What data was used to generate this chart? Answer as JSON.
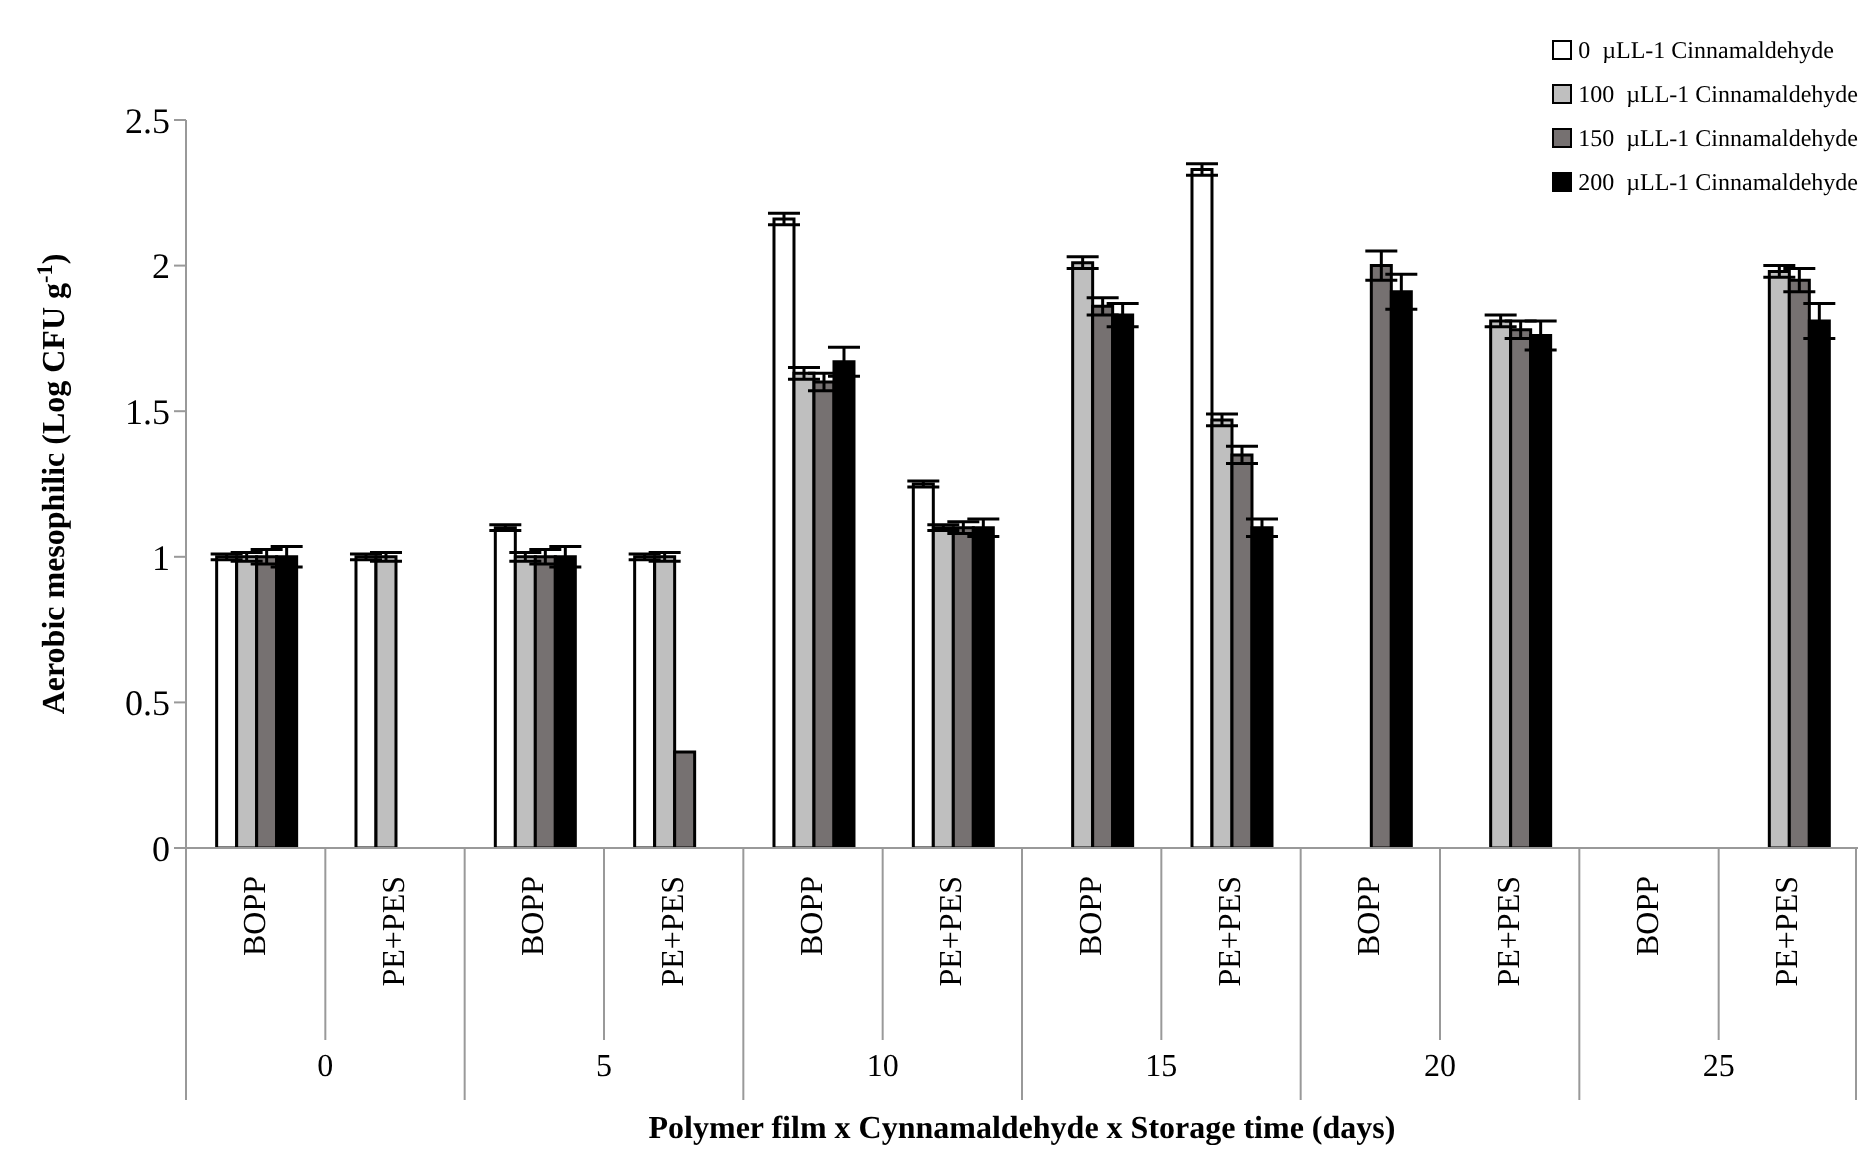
{
  "chart_data": {
    "type": "bar",
    "xlabel": "Polymer film x Cynnamaldehyde x Storage time (days)",
    "ylabel": "Aerobic mesophilic (Log CFU g$^{-1}$)",
    "categories": [
      "BOPP",
      "PE+PES",
      "BOPP",
      "PE+PES",
      "BOPP",
      "PE+PES",
      "BOPP",
      "PE+PES",
      "BOPP",
      "PE+PES",
      "BOPP",
      "PE+PES"
    ],
    "annotations": [
      "0",
      "5",
      "10",
      "15",
      "20",
      "25"
    ],
    "ylim": [
      0,
      2.5
    ],
    "yticks": [
      0,
      {
        "value": 0.5,
        "label": "0.5"
      },
      1,
      {
        "value": 1.5,
        "label": "1.5"
      },
      2,
      {
        "value": 2.5,
        "label": "2.5"
      }
    ],
    "grid": false,
    "legend": "top right",
    "series": [
      {
        "name": "0  µLL-1 Cinnamaldehyde",
        "color": "#ffffff",
        "values": [
          1.0,
          1.0,
          1.1,
          1.0,
          2.16,
          1.25,
          null,
          2.33,
          null,
          null,
          null,
          null
        ],
        "errors": [
          0.01,
          0.01,
          0.01,
          0.01,
          0.02,
          0.01,
          null,
          0.02,
          null,
          null,
          null,
          null
        ]
      },
      {
        "name": "100  µLL-1 Cinnamaldehyde",
        "color": "#bfbfbf",
        "values": [
          1.0,
          1.0,
          1.0,
          1.0,
          1.63,
          1.1,
          2.01,
          1.47,
          null,
          1.81,
          null,
          1.98
        ],
        "errors": [
          0.015,
          0.015,
          0.015,
          0.015,
          0.02,
          0.01,
          0.02,
          0.02,
          null,
          0.02,
          null,
          0.02
        ]
      },
      {
        "name": "150  µLL-1 Cinnamaldehyde",
        "color": "#767171",
        "values": [
          1.0,
          null,
          1.0,
          0.33,
          1.6,
          1.1,
          1.86,
          1.35,
          2.0,
          1.78,
          null,
          1.95
        ],
        "errors": [
          0.025,
          null,
          0.025,
          null,
          0.03,
          0.02,
          0.03,
          0.03,
          0.05,
          0.03,
          null,
          0.04
        ]
      },
      {
        "name": "200  µLL-1 Cinnamaldehyde",
        "color": "#000000",
        "values": [
          1.0,
          null,
          1.0,
          null,
          1.67,
          1.1,
          1.83,
          1.1,
          1.91,
          1.76,
          null,
          1.81
        ],
        "errors": [
          0.035,
          null,
          0.035,
          null,
          0.05,
          0.03,
          0.04,
          0.03,
          0.06,
          0.05,
          null,
          0.06
        ]
      }
    ]
  }
}
